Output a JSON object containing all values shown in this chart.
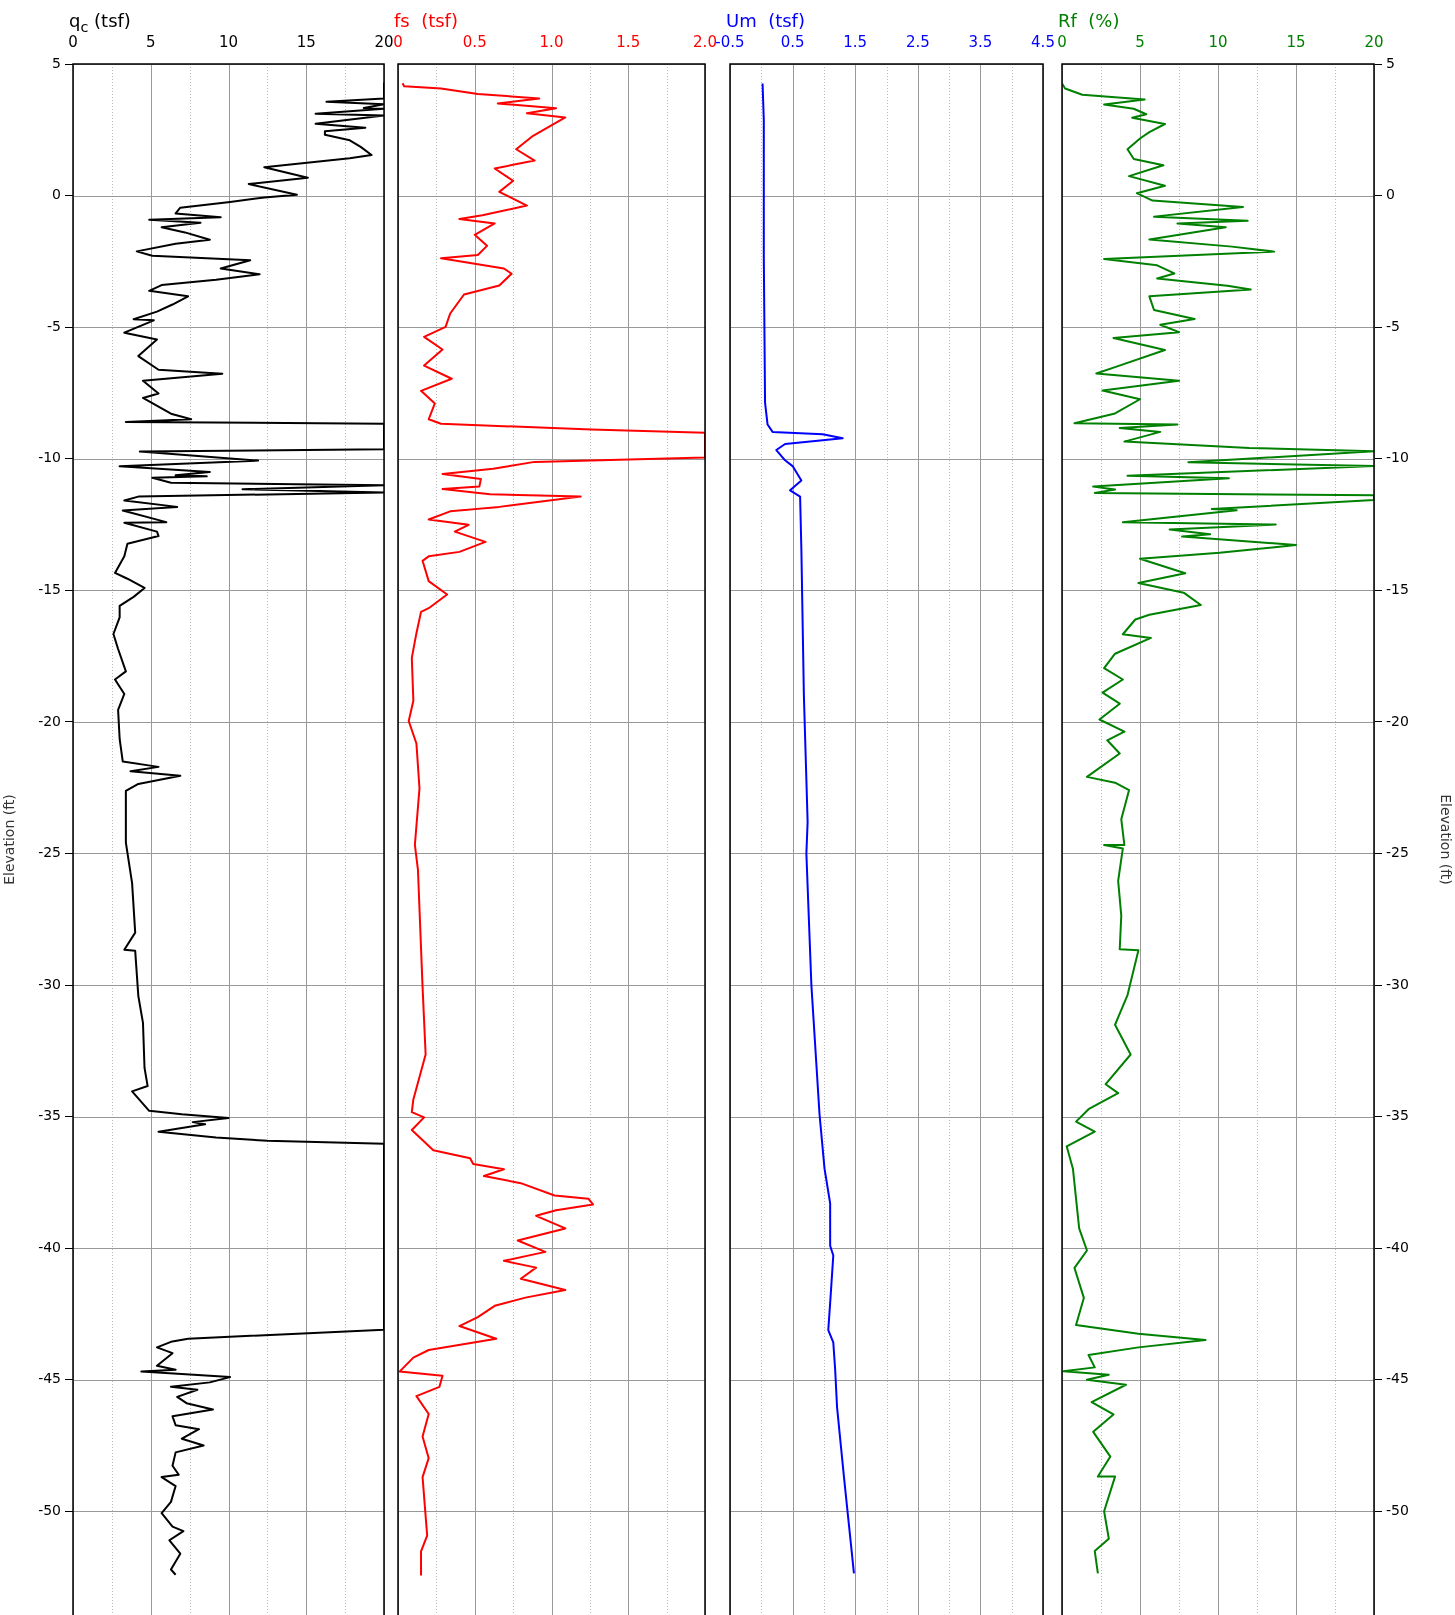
{
  "chart_data": [
    {
      "type": "line",
      "xlabel": "q$_{c}$ (tsf)",
      "ylabel": "Elevation (ft)",
      "xlim": [
        0,
        20
      ],
      "xticks": [
        0,
        {
          "value": 2.5,
          "label": null
        },
        5,
        {
          "value": 7.5,
          "label": null
        },
        10,
        {
          "value": 12.5,
          "label": null
        },
        15,
        {
          "value": 17.5,
          "label": null
        },
        20
      ],
      "ylim": [
        -53.94,
        5
      ],
      "yticks": [
        5,
        0,
        -5,
        -10,
        -15,
        -20,
        -25,
        -30,
        -35,
        -40,
        -45,
        -50
      ],
      "grid": true,
      "marker": "none",
      "series": [
        {
          "color": "#000000",
          "x": [
            20,
            20,
            16.3,
            20,
            18.7,
            20,
            15.6,
            20,
            15.6,
            18.8,
            16.2,
            16.2,
            17.8,
            18.5,
            19.2,
            17.8,
            12.3,
            15.1,
            11.3,
            14.4,
            12.3,
            10.1,
            6.9,
            6.6,
            9.5,
            4.9,
            8.2,
            5.7,
            7.2,
            8.8,
            6.6,
            4.1,
            5.1,
            11.4,
            9.5,
            12.0,
            9.2,
            5.7,
            4.9,
            7.4,
            6.4,
            5.4,
            3.9,
            5.2,
            3.3,
            5.4,
            4.2,
            5.5,
            9.6,
            4.5,
            5.5,
            4.5,
            6.3,
            7.6,
            3.4,
            20,
            20,
            4.3,
            11.9,
            3.0,
            8.8,
            6.6,
            8.6,
            5.1,
            6.3,
            20,
            10.9,
            20,
            4.2,
            3.3,
            6.7,
            3.2,
            6.0,
            3.3,
            5.4,
            5.5,
            3.5,
            3.3,
            2.7,
            3.5,
            4.6,
            3.9,
            3.0,
            3.0,
            2.6,
            2.9,
            3.4,
            2.7,
            3.3,
            2.9,
            3.0,
            3.2,
            5.5,
            3.7,
            6.9,
            4.2,
            3.4,
            3.4,
            3.8,
            4.0,
            3.3,
            4.0,
            4.2,
            4.5,
            4.6,
            4.8,
            3.8,
            4.9,
            7.0,
            10.0,
            7.7,
            8.5,
            5.5,
            9.2,
            12.5,
            20,
            20,
            7.4,
            6.3,
            5.4,
            6.4,
            5.4,
            6.6,
            4.4,
            10.1,
            8.8,
            6.3,
            8.0,
            6.7,
            7.3,
            9.0,
            6.4,
            6.6,
            8.1,
            7.0,
            8.4,
            6.6,
            6.4,
            6.8,
            5.7,
            6.6,
            6.3,
            5.7,
            6.4,
            7.1,
            6.2,
            6.9,
            6.3,
            6.6
          ],
          "values": [
            4.27,
            3.69,
            3.57,
            3.47,
            3.33,
            3.3,
            3.11,
            3.04,
            2.73,
            2.58,
            2.44,
            2.31,
            2.1,
            1.85,
            1.54,
            1.42,
            1.08,
            0.68,
            0.44,
            0.03,
            -0.07,
            -0.24,
            -0.46,
            -0.68,
            -0.82,
            -0.92,
            -1.03,
            -1.2,
            -1.4,
            -1.68,
            -1.83,
            -2.12,
            -2.29,
            -2.46,
            -2.77,
            -2.99,
            -3.2,
            -3.4,
            -3.62,
            -3.83,
            -4.14,
            -4.41,
            -4.7,
            -4.74,
            -5.21,
            -5.47,
            -6.1,
            -6.62,
            -6.77,
            -7.04,
            -7.52,
            -7.69,
            -8.29,
            -8.5,
            -8.6,
            -8.67,
            -9.64,
            -9.73,
            -10.07,
            -10.29,
            -10.5,
            -10.63,
            -10.67,
            -10.72,
            -10.91,
            -11.01,
            -11.16,
            -11.28,
            -11.44,
            -11.59,
            -11.83,
            -11.97,
            -12.41,
            -12.43,
            -12.77,
            -12.94,
            -13.23,
            -13.71,
            -14.34,
            -14.56,
            -14.91,
            -15.25,
            -15.59,
            -16.03,
            -16.66,
            -17.23,
            -18.08,
            -18.39,
            -18.94,
            -19.54,
            -20.65,
            -21.51,
            -21.71,
            -21.88,
            -22.05,
            -22.36,
            -22.62,
            -24.59,
            -26.13,
            -28.01,
            -28.66,
            -28.7,
            -30.41,
            -31.44,
            -33.15,
            -33.84,
            -34.04,
            -34.78,
            -34.91,
            -35.05,
            -35.21,
            -35.29,
            -35.58,
            -35.79,
            -35.92,
            -36.03,
            -43.1,
            -43.44,
            -43.56,
            -43.77,
            -43.99,
            -44.47,
            -44.62,
            -44.69,
            -44.9,
            -45.1,
            -45.27,
            -45.38,
            -45.65,
            -45.89,
            -46.13,
            -46.39,
            -46.73,
            -46.88,
            -47.24,
            -47.5,
            -47.76,
            -48.27,
            -48.61,
            -48.7,
            -49.04,
            -49.64,
            -50.07,
            -50.58,
            -50.75,
            -51.1,
            -51.61,
            -52.21,
            -52.41
          ]
        }
      ]
    },
    {
      "type": "line",
      "xlabel": "fs  (tsf)",
      "xlim": [
        0,
        2
      ],
      "xticks": [
        0,
        {
          "value": 0.25,
          "label": null
        },
        0.5,
        {
          "value": 0.75,
          "label": null
        },
        {
          "value": 1,
          "label": "1.0"
        },
        {
          "value": 1.25,
          "label": null
        },
        1.5,
        {
          "value": 1.75,
          "label": null
        },
        {
          "value": 2,
          "label": "2.0"
        }
      ],
      "ylim": [
        -53.94,
        5
      ],
      "yticks": [
        5,
        0,
        -5,
        -10,
        -15,
        -20,
        -25,
        -30,
        -35,
        -40,
        -45,
        -50
      ],
      "grid": true,
      "tick_labels": "x",
      "marker": "none",
      "series": [
        {
          "color": "#ff0000",
          "x": [
            0.03,
            0.04,
            0.28,
            0.52,
            0.92,
            0.65,
            1.03,
            0.84,
            1.09,
            0.88,
            0.77,
            0.89,
            0.63,
            0.75,
            0.66,
            0.84,
            0.55,
            0.4,
            0.63,
            0.5,
            0.58,
            0.52,
            0.28,
            0.69,
            0.74,
            0.66,
            0.43,
            0.34,
            0.31,
            0.17,
            0.29,
            0.17,
            0.35,
            0.15,
            0.24,
            0.2,
            0.28,
            1.26,
            2.0,
            2.0,
            0.89,
            0.62,
            0.29,
            0.54,
            0.53,
            0.29,
            0.6,
            1.19,
            0.66,
            0.34,
            0.2,
            0.46,
            0.37,
            0.57,
            0.4,
            0.2,
            0.16,
            0.2,
            0.32,
            0.2,
            0.15,
            0.12,
            0.09,
            0.1,
            0.07,
            0.12,
            0.14,
            0.11,
            0.13,
            0.16,
            0.18,
            0.1,
            0.09,
            0.17,
            0.09,
            0.23,
            0.47,
            0.49,
            0.69,
            0.56,
            0.8,
            1.02,
            1.24,
            1.27,
            1.03,
            0.9,
            1.09,
            0.78,
            0.96,
            0.69,
            0.9,
            0.8,
            1.09,
            0.83,
            0.63,
            0.52,
            0.4,
            0.64,
            0.2,
            0.1,
            0.01,
            0.29,
            0.27,
            0.12,
            0.2,
            0.16,
            0.2,
            0.16,
            0.19,
            0.15,
            0.15
          ],
          "values": [
            4.27,
            4.15,
            4.07,
            3.86,
            3.69,
            3.5,
            3.32,
            3.13,
            2.97,
            2.27,
            1.76,
            1.33,
            1.03,
            0.56,
            0.14,
            -0.38,
            -0.75,
            -0.89,
            -1.06,
            -1.49,
            -1.91,
            -2.26,
            -2.38,
            -2.77,
            -2.97,
            -3.42,
            -3.76,
            -4.48,
            -4.99,
            -5.37,
            -5.85,
            -6.46,
            -6.96,
            -7.42,
            -7.9,
            -8.5,
            -8.67,
            -8.89,
            -9.01,
            -9.95,
            -10.12,
            -10.38,
            -10.58,
            -10.77,
            -11.06,
            -11.15,
            -11.35,
            -11.44,
            -11.83,
            -12.0,
            -12.31,
            -12.51,
            -12.77,
            -13.16,
            -13.54,
            -13.71,
            -13.88,
            -14.65,
            -15.16,
            -15.68,
            -15.82,
            -16.63,
            -17.57,
            -19.2,
            -19.97,
            -20.82,
            -22.53,
            -24.67,
            -25.62,
            -30.07,
            -32.64,
            -34.35,
            -34.83,
            -35.03,
            -35.51,
            -36.28,
            -36.58,
            -36.8,
            -37.0,
            -37.26,
            -37.53,
            -38.0,
            -38.12,
            -38.34,
            -38.56,
            -38.77,
            -39.25,
            -39.71,
            -40.14,
            -40.48,
            -40.74,
            -41.16,
            -41.59,
            -41.88,
            -42.19,
            -42.62,
            -42.96,
            -43.44,
            -43.87,
            -44.16,
            -44.69,
            -44.85,
            -45.27,
            -45.62,
            -46.3,
            -47.16,
            -47.98,
            -48.7,
            -50.92,
            -51.52,
            -52.41
          ]
        }
      ]
    },
    {
      "type": "line",
      "xlabel": "Um  (tsf)",
      "xlim": [
        -0.5,
        4.5
      ],
      "xticks": [
        -0.5,
        {
          "value": 0,
          "label": null
        },
        0.5,
        {
          "value": 1,
          "label": null
        },
        1.5,
        {
          "value": 2,
          "label": null
        },
        2.5,
        {
          "value": 3,
          "label": null
        },
        3.5,
        {
          "value": 4,
          "label": null
        },
        4.5
      ],
      "ylim": [
        -53.94,
        5
      ],
      "yticks": [
        5,
        0,
        -5,
        -10,
        -15,
        -20,
        -25,
        -30,
        -35,
        -40,
        -45,
        -50
      ],
      "grid": true,
      "tick_labels": "x",
      "marker": "none",
      "series": [
        {
          "color": "#0000ff",
          "x": [
            0.02,
            0.04,
            0.04,
            0.06,
            0.1,
            0.18,
            0.98,
            1.3,
            0.38,
            0.24,
            0.38,
            0.5,
            0.64,
            0.46,
            0.62,
            0.64,
            0.68,
            0.74,
            0.72,
            0.8,
            0.93,
            1.01,
            1.1,
            1.1,
            1.15,
            1.1,
            1.07,
            1.15,
            1.18,
            1.21,
            1.32,
            1.48
          ],
          "values": [
            4.26,
            2.87,
            -2.31,
            -7.87,
            -8.7,
            -8.98,
            -9.07,
            -9.22,
            -9.44,
            -9.67,
            -10.06,
            -10.28,
            -10.83,
            -11.2,
            -11.44,
            -13.43,
            -18.98,
            -23.8,
            -25.0,
            -30.0,
            -34.91,
            -36.98,
            -38.3,
            -39.91,
            -40.28,
            -42.08,
            -43.11,
            -43.58,
            -44.62,
            -46.04,
            -48.68,
            -52.36
          ]
        }
      ]
    },
    {
      "type": "line",
      "xlabel": "Rf  (%)",
      "y2label": "Elevation (ft)",
      "xlim": [
        0,
        20
      ],
      "xticks": [
        0,
        {
          "value": 2.5,
          "label": null
        },
        5,
        {
          "value": 7.5,
          "label": null
        },
        10,
        {
          "value": 12.5,
          "label": null
        },
        15,
        {
          "value": 17.5,
          "label": null
        },
        20
      ],
      "y2lim": [
        -53.94,
        5
      ],
      "y2ticks": [
        5,
        0,
        -5,
        -10,
        -15,
        -20,
        -25,
        -30,
        -35,
        -40,
        -45,
        -50
      ],
      "grid": true,
      "marker": "none",
      "series": [
        {
          "color": "#008000",
          "axis": "y2",
          "x": [
            0,
            0.2,
            1.3,
            5.3,
            2.7,
            4.6,
            5.4,
            4.5,
            6.6,
            5.6,
            5.0,
            4.2,
            4.6,
            6.5,
            4.3,
            6.6,
            4.8,
            5.8,
            11.6,
            5.9,
            11.9,
            7.4,
            10.5,
            5.6,
            10.9,
            13.6,
            2.7,
            6.1,
            7.2,
            6.1,
            10.6,
            12.1,
            5.6,
            5.9,
            8.5,
            6.3,
            7.5,
            3.3,
            6.6,
            3.4,
            2.2,
            7.5,
            2.6,
            5.0,
            3.4,
            0.8,
            7.4,
            3.7,
            6.3,
            4.0,
            12.0,
            20,
            8.1,
            20,
            4.2,
            10.7,
            2.0,
            3.4,
            2.1,
            20,
            20,
            9.6,
            11.2,
            3.9,
            13.7,
            6.9,
            9.5,
            7.7,
            15.0,
            10.1,
            5.0,
            7.9,
            4.9,
            7.8,
            8.9,
            5.6,
            4.7,
            3.9,
            5.7,
            3.4,
            2.7,
            3.9,
            2.6,
            3.7,
            2.4,
            4.0,
            2.9,
            3.7,
            1.6,
            3.4,
            4.3,
            3.8,
            4.0,
            2.7,
            3.9,
            3.6,
            3.8,
            3.7,
            4.9,
            4.2,
            3.4,
            4.4,
            2.8,
            3.6,
            1.7,
            0.9,
            2.1,
            0.3,
            0.7,
            1.1,
            1.6,
            0.8,
            1.4,
            0.9,
            4.9,
            9.2,
            4.9,
            1.7,
            2.1,
            0.1,
            3.0,
            1.6,
            4.1,
            1.9,
            3.3,
            2.0,
            3.1,
            2.3,
            3.4,
            2.7,
            3.0,
            2.1,
            2.3
          ],
          "values": [
            4.26,
            4.07,
            3.83,
            3.65,
            3.46,
            3.3,
            3.09,
            2.96,
            2.72,
            2.41,
            2.17,
            1.76,
            1.39,
            1.15,
            0.74,
            0.37,
            0.09,
            -0.19,
            -0.43,
            -0.8,
            -0.96,
            -1.06,
            -1.2,
            -1.67,
            -1.94,
            -2.13,
            -2.41,
            -2.65,
            -2.96,
            -3.15,
            -3.43,
            -3.57,
            -3.83,
            -4.35,
            -4.69,
            -4.91,
            -5.19,
            -5.41,
            -5.87,
            -6.52,
            -6.76,
            -7.04,
            -7.41,
            -7.74,
            -8.28,
            -8.65,
            -8.7,
            -8.83,
            -8.98,
            -9.35,
            -9.59,
            -9.72,
            -10.13,
            -10.28,
            -10.65,
            -10.74,
            -11.06,
            -11.17,
            -11.3,
            -11.39,
            -11.57,
            -11.91,
            -11.96,
            -12.41,
            -12.5,
            -12.69,
            -12.87,
            -12.96,
            -13.28,
            -13.57,
            -13.8,
            -14.35,
            -14.72,
            -15.09,
            -15.56,
            -15.93,
            -16.11,
            -16.67,
            -16.81,
            -17.41,
            -17.96,
            -18.39,
            -18.89,
            -19.31,
            -19.91,
            -20.37,
            -20.7,
            -21.2,
            -22.09,
            -22.31,
            -22.59,
            -23.7,
            -24.68,
            -24.68,
            -24.81,
            -26.04,
            -27.36,
            -28.64,
            -28.68,
            -30.38,
            -31.51,
            -32.64,
            -33.77,
            -34.11,
            -34.72,
            -35.19,
            -35.57,
            -36.13,
            -36.98,
            -39.25,
            -40.09,
            -40.75,
            -41.89,
            -42.92,
            -43.25,
            -43.49,
            -43.77,
            -44.06,
            -44.53,
            -44.68,
            -44.81,
            -45.0,
            -45.19,
            -45.85,
            -46.32,
            -46.98,
            -47.92,
            -48.68,
            -48.68,
            -50.0,
            -51.04,
            -51.51,
            -52.36
          ]
        }
      ]
    }
  ]
}
